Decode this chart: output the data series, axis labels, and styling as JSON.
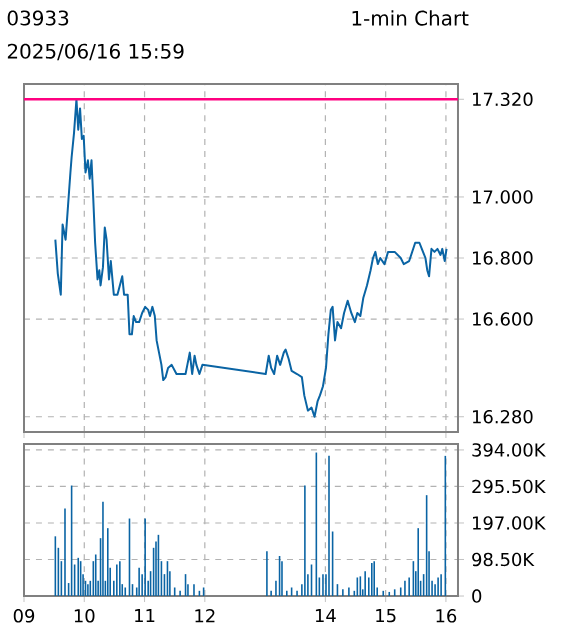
{
  "chart_data": [
    {
      "type": "line",
      "title": "03933",
      "subtitle": "2025/06/16 15:59",
      "annotations": [
        "1-min Chart"
      ],
      "x": [
        9.52,
        9.56,
        9.61,
        9.64,
        9.69,
        9.73,
        9.77,
        9.79,
        9.83,
        9.87,
        9.9,
        9.93,
        9.96,
        9.99,
        10.02,
        10.06,
        10.09,
        10.12,
        10.15,
        10.18,
        10.22,
        10.25,
        10.27,
        10.31,
        10.34,
        10.37,
        10.41,
        10.44,
        10.49,
        10.55,
        10.59,
        10.63,
        10.66,
        10.72,
        10.75,
        10.79,
        10.82,
        10.86,
        10.91,
        10.96,
        11.01,
        11.06,
        11.09,
        11.13,
        11.17,
        11.2,
        11.24,
        11.28,
        11.31,
        11.35,
        11.39,
        11.45,
        11.53,
        11.68,
        11.71,
        11.75,
        11.79,
        11.83,
        11.86,
        11.91,
        11.96,
        13.01,
        13.06,
        13.1,
        13.15,
        13.2,
        13.25,
        13.31,
        13.34,
        13.39,
        13.44,
        13.53,
        13.61,
        13.65,
        13.71,
        13.77,
        13.82,
        13.87,
        13.91,
        13.96,
        14.01,
        14.05,
        14.09,
        14.12,
        14.16,
        14.2,
        14.26,
        14.31,
        14.37,
        14.43,
        14.49,
        14.53,
        14.58,
        14.63,
        14.69,
        14.75,
        14.79,
        14.83,
        14.87,
        14.91,
        14.98,
        15.04,
        15.15,
        15.25,
        15.3,
        15.39,
        15.44,
        15.49,
        15.56,
        15.6,
        15.66,
        15.69,
        15.72,
        15.76,
        15.81,
        15.86,
        15.91,
        15.94,
        15.98,
        16.01
      ],
      "series": [
        {
          "color": "#0a64a4",
          "values": [
            16.86,
            16.75,
            16.68,
            16.91,
            16.86,
            16.97,
            17.08,
            17.13,
            17.21,
            17.32,
            17.22,
            17.29,
            17.19,
            17.2,
            17.08,
            17.12,
            17.06,
            17.12,
            16.99,
            16.85,
            16.73,
            16.76,
            16.71,
            16.77,
            16.9,
            16.86,
            16.73,
            16.79,
            16.68,
            16.68,
            16.71,
            16.74,
            16.68,
            16.68,
            16.55,
            16.55,
            16.61,
            16.59,
            16.59,
            16.62,
            16.64,
            16.63,
            16.61,
            16.64,
            16.61,
            16.53,
            16.49,
            16.45,
            16.4,
            16.41,
            16.44,
            16.45,
            16.42,
            16.42,
            16.45,
            16.49,
            16.42,
            16.48,
            16.45,
            16.42,
            16.45,
            16.42,
            16.48,
            16.44,
            16.42,
            16.48,
            16.45,
            16.49,
            16.5,
            16.47,
            16.43,
            16.42,
            16.41,
            16.35,
            16.3,
            16.31,
            16.28,
            16.33,
            16.35,
            16.38,
            16.44,
            16.55,
            16.63,
            16.64,
            16.53,
            16.59,
            16.57,
            16.62,
            16.66,
            16.62,
            16.59,
            16.62,
            16.61,
            16.67,
            16.71,
            16.76,
            16.8,
            16.82,
            16.78,
            16.8,
            16.78,
            16.82,
            16.82,
            16.8,
            16.78,
            16.79,
            16.82,
            16.85,
            16.85,
            16.83,
            16.8,
            16.76,
            16.74,
            16.83,
            16.82,
            16.83,
            16.81,
            16.83,
            16.79,
            16.83
          ]
        }
      ],
      "xlim": [
        9,
        16.2
      ],
      "ylim": [
        16.23,
        17.37
      ],
      "xticks": [
        9,
        10,
        11,
        12,
        14,
        15,
        16
      ],
      "yticks": [
        {
          "value": 16.28,
          "label": "16.280"
        },
        {
          "value": 16.6,
          "label": "16.600"
        },
        {
          "value": 16.8,
          "label": "16.800"
        },
        {
          "value": 17.0,
          "label": "17.000"
        },
        {
          "value": 17.32,
          "label": "17.320"
        }
      ],
      "ref_lines": [
        {
          "axis": "y",
          "value": 17.32,
          "color": "#ff0080"
        }
      ],
      "grid": true,
      "tick_labels": "y"
    },
    {
      "type": "bar",
      "x": [
        9.52,
        9.57,
        9.62,
        9.68,
        9.74,
        9.79,
        9.84,
        9.9,
        9.94,
        9.98,
        10.02,
        10.06,
        10.1,
        10.15,
        10.19,
        10.23,
        10.27,
        10.31,
        10.35,
        10.39,
        10.43,
        10.49,
        10.54,
        10.59,
        10.63,
        10.68,
        10.75,
        10.8,
        10.87,
        10.91,
        10.96,
        11.01,
        11.06,
        11.1,
        11.15,
        11.19,
        11.23,
        11.28,
        11.33,
        11.38,
        11.42,
        11.5,
        11.59,
        11.68,
        11.72,
        11.82,
        11.91,
        11.98,
        13.03,
        13.1,
        13.18,
        13.24,
        13.28,
        13.36,
        13.44,
        13.53,
        13.61,
        13.66,
        13.71,
        13.77,
        13.85,
        13.9,
        13.96,
        14.01,
        14.06,
        14.12,
        14.2,
        14.29,
        14.39,
        14.48,
        14.53,
        14.58,
        14.62,
        14.66,
        14.72,
        14.77,
        14.81,
        14.86,
        14.96,
        15.06,
        15.15,
        15.25,
        15.32,
        15.39,
        15.46,
        15.5,
        15.54,
        15.58,
        15.63,
        15.68,
        15.72,
        15.77,
        15.82,
        15.87,
        15.92,
        15.99
      ],
      "series": [
        {
          "color": "#0a64a4",
          "values": [
            161000,
            130000,
            94000,
            236000,
            35000,
            298000,
            85000,
            103000,
            94000,
            59000,
            41000,
            32000,
            41000,
            94000,
            112000,
            41000,
            156000,
            254000,
            41000,
            183000,
            76000,
            41000,
            85000,
            94000,
            32000,
            23000,
            209000,
            32000,
            23000,
            76000,
            59000,
            209000,
            41000,
            67000,
            130000,
            147000,
            165000,
            94000,
            59000,
            94000,
            67000,
            23000,
            14000,
            59000,
            32000,
            32000,
            14000,
            23000,
            121000,
            14000,
            41000,
            108000,
            94000,
            14000,
            23000,
            14000,
            32000,
            298000,
            59000,
            85000,
            387000,
            50000,
            59000,
            59000,
            378000,
            174000,
            32000,
            18000,
            23000,
            14000,
            50000,
            53000,
            18000,
            67000,
            50000,
            89000,
            94000,
            23000,
            14000,
            11000,
            18000,
            23000,
            41000,
            50000,
            94000,
            67000,
            183000,
            41000,
            59000,
            272000,
            121000,
            41000,
            32000,
            50000,
            59000,
            378000
          ]
        }
      ],
      "xlim": [
        9,
        16.2
      ],
      "ylim": [
        0,
        410000
      ],
      "xticks": [
        {
          "value": 9,
          "label": "09"
        },
        10,
        11,
        12,
        14,
        15,
        16
      ],
      "yticks": [
        0,
        {
          "value": 98500,
          "label": "98.50K"
        },
        {
          "value": 197000,
          "label": "197.00K"
        },
        {
          "value": 295500,
          "label": "295.50K"
        },
        {
          "value": 394000,
          "label": "394.00K"
        }
      ],
      "grid": true
    }
  ]
}
